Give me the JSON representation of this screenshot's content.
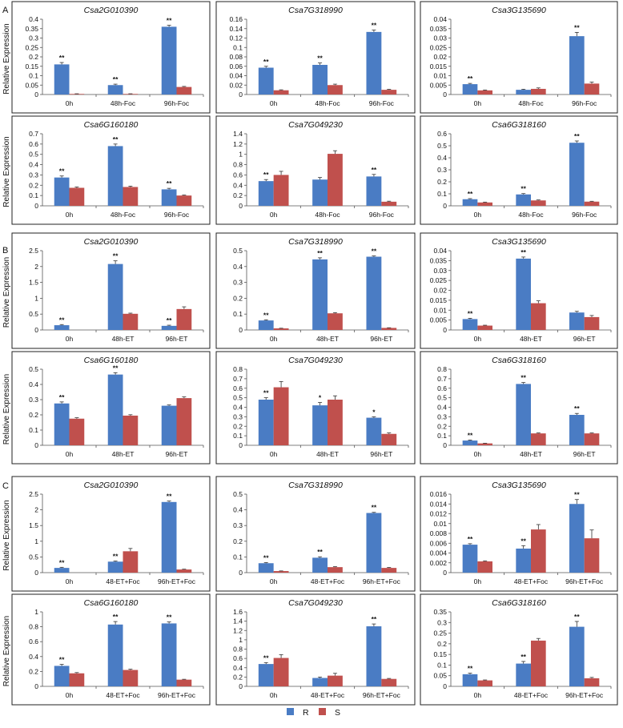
{
  "legend": {
    "R": {
      "label": "R",
      "color": "#4a7cc4"
    },
    "S": {
      "label": "S",
      "color": "#c0504d"
    }
  },
  "ylabel": "Relative Expression",
  "chart_data": [
    {
      "section": "A",
      "type": "bar",
      "title": "Csa2G010390",
      "categories": [
        "0h",
        "48h-Foc",
        "96h-Foc"
      ],
      "ylim": [
        0,
        0.4
      ],
      "yticks": [
        "0",
        "0.05",
        "0.1",
        "0.15",
        "0.2",
        "0.25",
        "0.3",
        "0.35",
        "0.4"
      ],
      "series": [
        {
          "name": "R",
          "values": [
            0.16,
            0.05,
            0.36
          ],
          "errors": [
            0.01,
            0.005,
            0.008
          ]
        },
        {
          "name": "S",
          "values": [
            0.003,
            0.003,
            0.04
          ],
          "errors": [
            0.001,
            0.001,
            0.003
          ]
        }
      ],
      "sig": [
        "**",
        "**",
        "**"
      ]
    },
    {
      "section": "A",
      "type": "bar",
      "title": "Csa7G318990",
      "categories": [
        "0h",
        "48h-Foc",
        "96h-Foc"
      ],
      "ylim": [
        0,
        0.16
      ],
      "yticks": [
        "0",
        "0.02",
        "0.04",
        "0.06",
        "0.08",
        "0.1",
        "0.12",
        "0.14",
        "0.16"
      ],
      "series": [
        {
          "name": "R",
          "values": [
            0.057,
            0.063,
            0.133
          ],
          "errors": [
            0.003,
            0.004,
            0.004
          ]
        },
        {
          "name": "S",
          "values": [
            0.009,
            0.02,
            0.01
          ],
          "errors": [
            0.001,
            0.002,
            0.001
          ]
        }
      ],
      "sig": [
        "**",
        "**",
        "**"
      ]
    },
    {
      "section": "A",
      "type": "bar",
      "title": "Csa3G135690",
      "categories": [
        "0h",
        "48h-Foc",
        "96h-Foc"
      ],
      "ylim": [
        0,
        0.04
      ],
      "yticks": [
        "0",
        "0.005",
        "0.01",
        "0.015",
        "0.02",
        "0.025",
        "0.03",
        "0.035",
        "0.04"
      ],
      "series": [
        {
          "name": "R",
          "values": [
            0.0055,
            0.0025,
            0.031
          ],
          "errors": [
            0.0004,
            0.0003,
            0.002
          ]
        },
        {
          "name": "S",
          "values": [
            0.0022,
            0.003,
            0.0058
          ],
          "errors": [
            0.0002,
            0.0005,
            0.0008
          ]
        }
      ],
      "sig": [
        "**",
        "",
        "**"
      ]
    },
    {
      "section": "A",
      "type": "bar",
      "title": "Csa6G160180",
      "categories": [
        "0h",
        "48h-Foc",
        "96h-Foc"
      ],
      "ylim": [
        0,
        0.7
      ],
      "yticks": [
        "0",
        "0.1",
        "0.2",
        "0.3",
        "0.4",
        "0.5",
        "0.6",
        "0.7"
      ],
      "series": [
        {
          "name": "R",
          "values": [
            0.275,
            0.58,
            0.16
          ],
          "errors": [
            0.015,
            0.02,
            0.01
          ]
        },
        {
          "name": "S",
          "values": [
            0.175,
            0.183,
            0.1
          ],
          "errors": [
            0.008,
            0.008,
            0.005
          ]
        }
      ],
      "sig": [
        "**",
        "**",
        "**"
      ]
    },
    {
      "section": "A",
      "type": "bar",
      "title": "Csa7G049230",
      "categories": [
        "0h",
        "48h-Foc",
        "96h-Foc"
      ],
      "ylim": [
        0,
        1.4
      ],
      "yticks": [
        "0",
        "0.2",
        "0.4",
        "0.6",
        "0.8",
        "1",
        "1.2",
        "1.4"
      ],
      "series": [
        {
          "name": "R",
          "values": [
            0.48,
            0.51,
            0.57
          ],
          "errors": [
            0.03,
            0.04,
            0.04
          ]
        },
        {
          "name": "S",
          "values": [
            0.6,
            1.01,
            0.08
          ],
          "errors": [
            0.07,
            0.06,
            0.01
          ]
        }
      ],
      "sig": [
        "**",
        "",
        "**"
      ]
    },
    {
      "section": "A",
      "type": "bar",
      "title": "Csa6G318160",
      "categories": [
        "0h",
        "48h-Foc",
        "96h-Foc"
      ],
      "ylim": [
        0,
        0.6
      ],
      "yticks": [
        "0",
        "0.1",
        "0.2",
        "0.3",
        "0.4",
        "0.5",
        "0.6"
      ],
      "series": [
        {
          "name": "R",
          "values": [
            0.055,
            0.095,
            0.525
          ],
          "errors": [
            0.005,
            0.007,
            0.015
          ]
        },
        {
          "name": "S",
          "values": [
            0.028,
            0.045,
            0.035
          ],
          "errors": [
            0.003,
            0.004,
            0.003
          ]
        }
      ],
      "sig": [
        "**",
        "**",
        "**"
      ]
    },
    {
      "section": "B",
      "type": "bar",
      "title": "Csa2G010390",
      "categories": [
        "0h",
        "48h-ET",
        "96h-ET"
      ],
      "ylim": [
        0,
        2.5
      ],
      "yticks": [
        "0",
        "0.5",
        "1",
        "1.5",
        "2",
        "2.5"
      ],
      "series": [
        {
          "name": "R",
          "values": [
            0.15,
            2.08,
            0.13
          ],
          "errors": [
            0.02,
            0.1,
            0.02
          ]
        },
        {
          "name": "S",
          "values": [
            0.0,
            0.51,
            0.66
          ],
          "errors": [
            0.0,
            0.02,
            0.07
          ]
        }
      ],
      "sig": [
        "**",
        "**",
        "**"
      ]
    },
    {
      "section": "B",
      "type": "bar",
      "title": "Csa7G318990",
      "categories": [
        "0h",
        "48h-ET",
        "96h-ET"
      ],
      "ylim": [
        0,
        0.5
      ],
      "yticks": [
        "0",
        "0.1",
        "0.2",
        "0.3",
        "0.4",
        "0.5"
      ],
      "series": [
        {
          "name": "R",
          "values": [
            0.06,
            0.445,
            0.462
          ],
          "errors": [
            0.004,
            0.01,
            0.005
          ]
        },
        {
          "name": "S",
          "values": [
            0.01,
            0.105,
            0.013
          ],
          "errors": [
            0.001,
            0.004,
            0.001
          ]
        }
      ],
      "sig": [
        "**",
        "**",
        "**"
      ]
    },
    {
      "section": "B",
      "type": "bar",
      "title": "Csa3G135690",
      "categories": [
        "0h",
        "48h-ET",
        "96h-ET"
      ],
      "ylim": [
        0,
        0.04
      ],
      "yticks": [
        "0",
        "0.005",
        "0.01",
        "0.015",
        "0.02",
        "0.025",
        "0.03",
        "0.035",
        "0.04"
      ],
      "series": [
        {
          "name": "R",
          "values": [
            0.0055,
            0.036,
            0.0088
          ],
          "errors": [
            0.0004,
            0.0008,
            0.0006
          ]
        },
        {
          "name": "S",
          "values": [
            0.0022,
            0.0135,
            0.0065
          ],
          "errors": [
            0.0002,
            0.0012,
            0.0008
          ]
        }
      ],
      "sig": [
        "**",
        "**",
        ""
      ]
    },
    {
      "section": "B",
      "type": "bar",
      "title": "Csa6G160180",
      "categories": [
        "0h",
        "48h-ET",
        "96h-ET"
      ],
      "ylim": [
        0,
        0.5
      ],
      "yticks": [
        "0",
        "0.1",
        "0.2",
        "0.3",
        "0.4",
        "0.5"
      ],
      "series": [
        {
          "name": "R",
          "values": [
            0.275,
            0.465,
            0.26
          ],
          "errors": [
            0.01,
            0.012,
            0.005
          ]
        },
        {
          "name": "S",
          "values": [
            0.175,
            0.195,
            0.31
          ],
          "errors": [
            0.006,
            0.006,
            0.008
          ]
        }
      ],
      "sig": [
        "**",
        "**",
        ""
      ]
    },
    {
      "section": "B",
      "type": "bar",
      "title": "Csa7G049230",
      "categories": [
        "0h",
        "48h-ET",
        "96h-ET"
      ],
      "ylim": [
        0,
        0.8
      ],
      "yticks": [
        "0",
        "0.1",
        "0.2",
        "0.3",
        "0.4",
        "0.5",
        "0.6",
        "0.7",
        "0.8"
      ],
      "series": [
        {
          "name": "R",
          "values": [
            0.48,
            0.42,
            0.29
          ],
          "errors": [
            0.02,
            0.03,
            0.01
          ]
        },
        {
          "name": "S",
          "values": [
            0.61,
            0.48,
            0.12
          ],
          "errors": [
            0.06,
            0.04,
            0.01
          ]
        }
      ],
      "sig": [
        "**",
        "*",
        "*"
      ]
    },
    {
      "section": "B",
      "type": "bar",
      "title": "Csa6G318160",
      "categories": [
        "0h",
        "48h-ET",
        "96h-ET"
      ],
      "ylim": [
        0,
        0.8
      ],
      "yticks": [
        "0",
        "0.1",
        "0.2",
        "0.3",
        "0.4",
        "0.5",
        "0.6",
        "0.7",
        "0.8"
      ],
      "series": [
        {
          "name": "R",
          "values": [
            0.05,
            0.645,
            0.32
          ],
          "errors": [
            0.005,
            0.015,
            0.015
          ]
        },
        {
          "name": "S",
          "values": [
            0.02,
            0.125,
            0.125
          ],
          "errors": [
            0.002,
            0.005,
            0.005
          ]
        }
      ],
      "sig": [
        "**",
        "**",
        "**"
      ]
    },
    {
      "section": "C",
      "type": "bar",
      "title": "Csa2G010390",
      "categories": [
        "0h",
        "48-ET+Foc",
        "96h-ET+Foc"
      ],
      "ylim": [
        0,
        2.5
      ],
      "yticks": [
        "0",
        "0.5",
        "1",
        "1.5",
        "2",
        "2.5"
      ],
      "series": [
        {
          "name": "R",
          "values": [
            0.15,
            0.35,
            2.25
          ],
          "errors": [
            0.02,
            0.02,
            0.03
          ]
        },
        {
          "name": "S",
          "values": [
            0.0,
            0.68,
            0.1
          ],
          "errors": [
            0.0,
            0.09,
            0.01
          ]
        }
      ],
      "sig": [
        "**",
        "**",
        "**"
      ]
    },
    {
      "section": "C",
      "type": "bar",
      "title": "Csa7G318990",
      "categories": [
        "0h",
        "48-ET+Foc",
        "96h-ET+Foc"
      ],
      "ylim": [
        0,
        0.5
      ],
      "yticks": [
        "0",
        "0.1",
        "0.2",
        "0.3",
        "0.4",
        "0.5"
      ],
      "series": [
        {
          "name": "R",
          "values": [
            0.06,
            0.095,
            0.38
          ],
          "errors": [
            0.004,
            0.006,
            0.004
          ]
        },
        {
          "name": "S",
          "values": [
            0.01,
            0.035,
            0.03
          ],
          "errors": [
            0.001,
            0.003,
            0.003
          ]
        }
      ],
      "sig": [
        "**",
        "**",
        "**"
      ]
    },
    {
      "section": "C",
      "type": "bar",
      "title": "Csa3G135690",
      "categories": [
        "0h",
        "48-ET+Foc",
        "96h-ET+Foc"
      ],
      "ylim": [
        0,
        0.016
      ],
      "yticks": [
        "0",
        "0.002",
        "0.004",
        "0.006",
        "0.008",
        "0.01",
        "0.012",
        "0.014",
        "0.016"
      ],
      "series": [
        {
          "name": "R",
          "values": [
            0.0057,
            0.0049,
            0.014
          ],
          "errors": [
            0.0002,
            0.0006,
            0.0009
          ]
        },
        {
          "name": "S",
          "values": [
            0.0023,
            0.0088,
            0.007
          ],
          "errors": [
            0.0001,
            0.001,
            0.0017
          ]
        }
      ],
      "sig": [
        "**",
        "**",
        "**"
      ]
    },
    {
      "section": "C",
      "type": "bar",
      "title": "Csa6G160180",
      "categories": [
        "0h",
        "48-ET+Foc",
        "96h-ET+Foc"
      ],
      "ylim": [
        0,
        1
      ],
      "yticks": [
        "0",
        "0.2",
        "0.4",
        "0.6",
        "0.8",
        "1"
      ],
      "series": [
        {
          "name": "R",
          "values": [
            0.275,
            0.83,
            0.845
          ],
          "errors": [
            0.02,
            0.04,
            0.02
          ]
        },
        {
          "name": "S",
          "values": [
            0.175,
            0.22,
            0.09
          ],
          "errors": [
            0.01,
            0.01,
            0.005
          ]
        }
      ],
      "sig": [
        "**",
        "**",
        "**"
      ]
    },
    {
      "section": "C",
      "type": "bar",
      "title": "Csa7G049230",
      "categories": [
        "0h",
        "48-ET+Foc",
        "96h-ET+Foc"
      ],
      "ylim": [
        0,
        1.6
      ],
      "yticks": [
        "0",
        "0.2",
        "0.4",
        "0.6",
        "0.8",
        "1",
        "1.2",
        "1.4",
        "1.6"
      ],
      "series": [
        {
          "name": "R",
          "values": [
            0.48,
            0.18,
            1.29
          ],
          "errors": [
            0.03,
            0.02,
            0.05
          ]
        },
        {
          "name": "S",
          "values": [
            0.61,
            0.23,
            0.16
          ],
          "errors": [
            0.07,
            0.05,
            0.01
          ]
        }
      ],
      "sig": [
        "**",
        "",
        "**"
      ]
    },
    {
      "section": "C",
      "type": "bar",
      "title": "Csa6G318160",
      "categories": [
        "0h",
        "48-ET+Foc",
        "96h-ET+Foc"
      ],
      "ylim": [
        0,
        0.35
      ],
      "yticks": [
        "0",
        "0.05",
        "0.1",
        "0.15",
        "0.2",
        "0.25",
        "0.3",
        "0.35"
      ],
      "series": [
        {
          "name": "R",
          "values": [
            0.057,
            0.107,
            0.28
          ],
          "errors": [
            0.005,
            0.01,
            0.025
          ]
        },
        {
          "name": "S",
          "values": [
            0.028,
            0.215,
            0.038
          ],
          "errors": [
            0.002,
            0.01,
            0.004
          ]
        }
      ],
      "sig": [
        "**",
        "**",
        "**"
      ]
    }
  ]
}
